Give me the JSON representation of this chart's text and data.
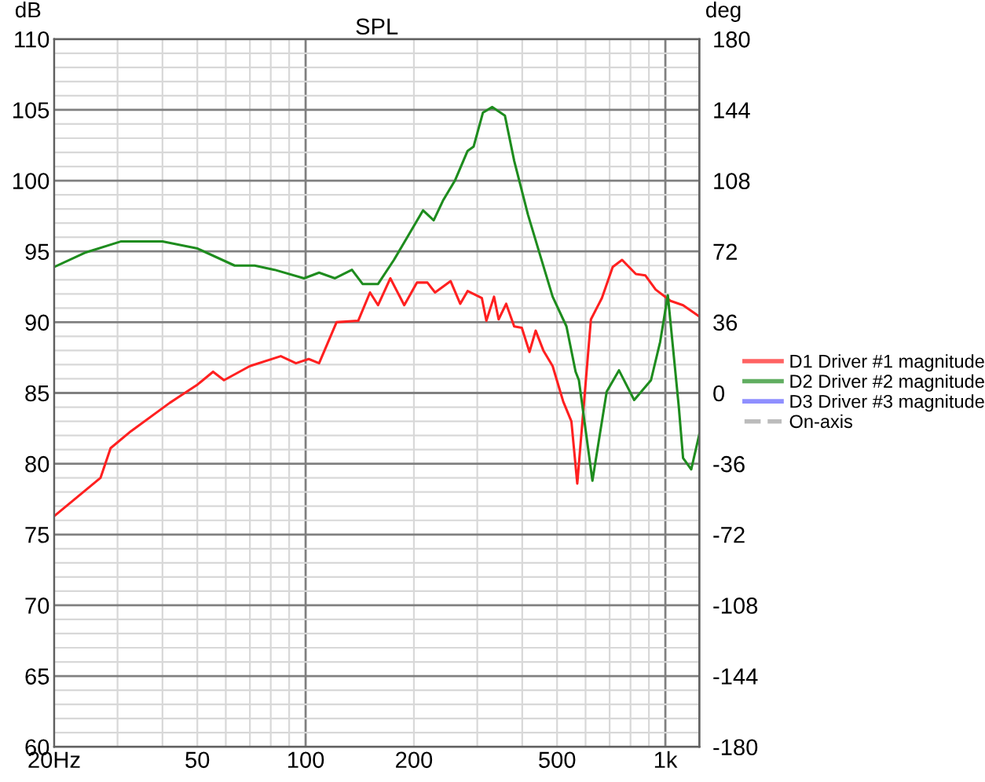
{
  "chart_data": {
    "type": "line",
    "title": "SPL",
    "ylabel": "dB",
    "y2label": "deg",
    "log": "x",
    "xlim": [
      20,
      1243
    ],
    "ylim": [
      60,
      110
    ],
    "y2lim": [
      -180,
      180
    ],
    "xticks": [
      {
        "value": 20,
        "label": "20Hz"
      },
      {
        "value": 30,
        "label": null
      },
      {
        "value": 40,
        "label": null
      },
      50,
      {
        "value": 60,
        "label": null
      },
      {
        "value": 70,
        "label": null
      },
      {
        "value": 80,
        "label": null
      },
      {
        "value": 90,
        "label": null
      },
      100,
      200,
      {
        "value": 300,
        "label": null
      },
      {
        "value": 400,
        "label": null
      },
      500,
      {
        "value": 600,
        "label": null
      },
      {
        "value": 700,
        "label": null
      },
      {
        "value": 800,
        "label": null
      },
      {
        "value": 900,
        "label": null
      },
      {
        "value": 1000,
        "label": "1k"
      }
    ],
    "yticks": [
      60,
      {
        "value": 61,
        "label": null
      },
      {
        "value": 62,
        "label": null
      },
      {
        "value": 63,
        "label": null
      },
      {
        "value": 64,
        "label": null
      },
      65,
      {
        "value": 66,
        "label": null
      },
      {
        "value": 67,
        "label": null
      },
      {
        "value": 68,
        "label": null
      },
      {
        "value": 69,
        "label": null
      },
      70,
      {
        "value": 71,
        "label": null
      },
      {
        "value": 72,
        "label": null
      },
      {
        "value": 73,
        "label": null
      },
      {
        "value": 74,
        "label": null
      },
      75,
      {
        "value": 76,
        "label": null
      },
      {
        "value": 77,
        "label": null
      },
      {
        "value": 78,
        "label": null
      },
      {
        "value": 79,
        "label": null
      },
      80,
      {
        "value": 81,
        "label": null
      },
      {
        "value": 82,
        "label": null
      },
      {
        "value": 83,
        "label": null
      },
      {
        "value": 84,
        "label": null
      },
      85,
      {
        "value": 86,
        "label": null
      },
      {
        "value": 87,
        "label": null
      },
      {
        "value": 88,
        "label": null
      },
      {
        "value": 89,
        "label": null
      },
      90,
      {
        "value": 91,
        "label": null
      },
      {
        "value": 92,
        "label": null
      },
      {
        "value": 93,
        "label": null
      },
      {
        "value": 94,
        "label": null
      },
      95,
      {
        "value": 96,
        "label": null
      },
      {
        "value": 97,
        "label": null
      },
      {
        "value": 98,
        "label": null
      },
      {
        "value": 99,
        "label": null
      },
      100,
      {
        "value": 101,
        "label": null
      },
      {
        "value": 102,
        "label": null
      },
      {
        "value": 103,
        "label": null
      },
      {
        "value": 104,
        "label": null
      },
      105,
      {
        "value": 106,
        "label": null
      },
      {
        "value": 107,
        "label": null
      },
      {
        "value": 108,
        "label": null
      },
      {
        "value": 109,
        "label": null
      },
      110
    ],
    "y2ticks": [
      -180,
      -144,
      -108,
      -72,
      -36,
      0,
      36,
      72,
      108,
      144,
      180
    ],
    "grid": true,
    "legend": "right",
    "marker": "none",
    "line_style": "solid",
    "series": [
      {
        "name": "D1 Driver #1 magnitude",
        "color": "#ff2020",
        "x": [
          20,
          26.9,
          28.7,
          32.7,
          41.9,
          50.1,
          55.3,
          59.3,
          70,
          85.3,
          94,
          102,
          109,
          121.9,
          140,
          151,
          159,
          172,
          188,
          204,
          218,
          229,
          253,
          269,
          282,
          309,
          318,
          334,
          344,
          361,
          380,
          399,
          419,
          436,
          458,
          486,
          520,
          548,
          569,
          621,
          666,
          714,
          758,
          828,
          880,
          940,
          1034,
          1120,
          1243
        ],
        "values": [
          76.3,
          79.0,
          81.1,
          82.3,
          84.3,
          85.6,
          86.5,
          85.9,
          86.9,
          87.6,
          87.1,
          87.4,
          87.1,
          90.0,
          90.1,
          92.1,
          91.2,
          93.1,
          91.2,
          92.8,
          92.8,
          92.1,
          92.9,
          91.3,
          92.2,
          91.7,
          90.1,
          91.8,
          90.2,
          91.3,
          89.7,
          89.6,
          87.9,
          89.4,
          88.0,
          86.9,
          84.4,
          83.0,
          78.6,
          90.2,
          91.7,
          93.9,
          94.4,
          93.4,
          93.3,
          92.3,
          91.5,
          91.2,
          90.4
        ]
      },
      {
        "name": "D2 Driver #2 magnitude",
        "color": "#1e8c1e",
        "x": [
          20,
          24.3,
          30.6,
          40,
          50.1,
          63.5,
          72.2,
          82,
          99,
          109,
          120.7,
          134.5,
          144,
          159,
          176,
          200,
          212,
          227,
          241,
          260,
          282,
          293,
          311,
          330,
          358,
          380,
          415,
          449,
          486,
          531,
          563,
          575,
          627,
          687,
          743,
          819,
          912,
          967,
          1016,
          1090,
          1120,
          1180,
          1243
        ],
        "values": [
          93.9,
          94.9,
          95.7,
          95.7,
          95.2,
          94.0,
          94.0,
          93.7,
          93.1,
          93.5,
          93.1,
          93.7,
          92.7,
          92.7,
          94.4,
          96.8,
          97.9,
          97.2,
          98.6,
          100.0,
          102.1,
          102.4,
          104.8,
          105.2,
          104.6,
          101.4,
          97.6,
          94.7,
          91.8,
          89.7,
          86.5,
          85.9,
          78.8,
          85.1,
          86.6,
          84.5,
          85.9,
          88.6,
          91.9,
          84.0,
          80.4,
          79.6,
          82.1
        ]
      },
      {
        "name": "D3 Driver #3 magnitude",
        "color": "#6060ff"
      },
      {
        "name": "On-axis",
        "color": "#a0a0a0",
        "line_style": "dashed"
      }
    ]
  }
}
